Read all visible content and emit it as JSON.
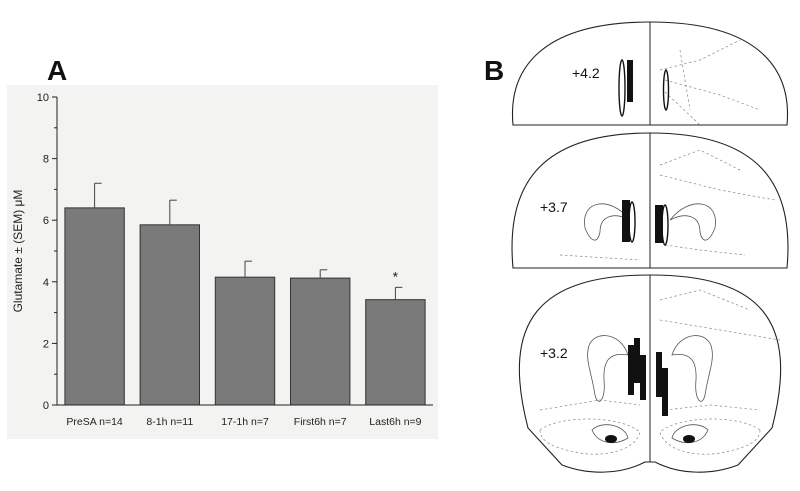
{
  "panels": {
    "A": "A",
    "B": "B"
  },
  "chart_data": {
    "type": "bar",
    "title": "",
    "xlabel": "",
    "ylabel": "Glutamate ± (SEM) μM",
    "ylim": [
      0,
      10
    ],
    "yticks": [
      0,
      2,
      4,
      6,
      8,
      10
    ],
    "categories": [
      "PreSA n=14",
      "8-1h n=11",
      "17-1h n=7",
      "First6h n=7",
      "Last6h n=9"
    ],
    "values": [
      6.4,
      5.85,
      4.15,
      4.12,
      3.42
    ],
    "errors": [
      0.8,
      0.8,
      0.52,
      0.27,
      0.4
    ],
    "significance": [
      "",
      "",
      "",
      "",
      "*"
    ],
    "bar_color": "#7a7a7a",
    "background_color": "#f3f3f1",
    "grid": false
  },
  "brain_sections": [
    {
      "level": "+4.2"
    },
    {
      "level": "+3.7"
    },
    {
      "level": "+3.2"
    }
  ]
}
